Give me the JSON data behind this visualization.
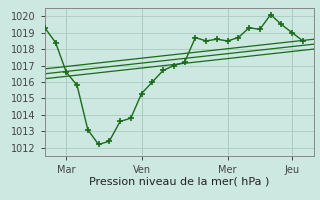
{
  "bg_color": "#cce8e0",
  "grid_color": "#aaccc0",
  "line_color": "#1a6b1a",
  "marker_color": "#1a6b1a",
  "xlabel": "Pression niveau de la mer( hPa )",
  "ylim": [
    1011.5,
    1020.5
  ],
  "xlim": [
    0,
    150
  ],
  "xtick_positions": [
    12,
    54,
    102,
    138
  ],
  "xtick_labels": [
    "Mar",
    "Ven",
    "Mer",
    "Jeu"
  ],
  "ytick_positions": [
    1012,
    1013,
    1014,
    1015,
    1016,
    1017,
    1018,
    1019,
    1020
  ],
  "vline_positions": [
    12,
    54,
    102,
    138
  ],
  "series1_x": [
    0,
    6,
    12,
    18,
    24,
    30,
    36,
    42,
    48,
    54,
    60,
    66,
    72,
    78,
    84,
    90,
    96,
    102,
    108,
    114,
    120,
    126,
    132,
    138,
    144
  ],
  "series1_y": [
    1019.3,
    1018.4,
    1016.6,
    1015.8,
    1013.1,
    1012.2,
    1012.4,
    1013.6,
    1013.8,
    1015.3,
    1016.0,
    1016.7,
    1017.0,
    1017.2,
    1018.7,
    1018.5,
    1018.6,
    1018.5,
    1018.7,
    1019.3,
    1019.2,
    1020.1,
    1019.5,
    1019.0,
    1018.5
  ],
  "series2_x": [
    0,
    150
  ],
  "series2_y": [
    1016.8,
    1018.6
  ],
  "series3_x": [
    0,
    150
  ],
  "series3_y": [
    1016.5,
    1018.3
  ],
  "series4_x": [
    0,
    150
  ],
  "series4_y": [
    1016.2,
    1018.0
  ]
}
